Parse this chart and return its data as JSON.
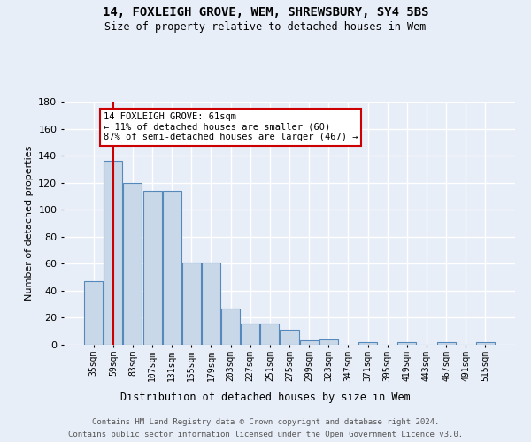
{
  "title1": "14, FOXLEIGH GROVE, WEM, SHREWSBURY, SY4 5BS",
  "title2": "Size of property relative to detached houses in Wem",
  "xlabel": "Distribution of detached houses by size in Wem",
  "ylabel": "Number of detached properties",
  "categories": [
    "35sqm",
    "59sqm",
    "83sqm",
    "107sqm",
    "131sqm",
    "155sqm",
    "179sqm",
    "203sqm",
    "227sqm",
    "251sqm",
    "275sqm",
    "299sqm",
    "323sqm",
    "347sqm",
    "371sqm",
    "395sqm",
    "419sqm",
    "443sqm",
    "467sqm",
    "491sqm",
    "515sqm"
  ],
  "values": [
    47,
    136,
    120,
    114,
    114,
    61,
    61,
    27,
    16,
    16,
    11,
    3,
    4,
    0,
    2,
    0,
    2,
    0,
    2,
    0,
    2
  ],
  "bar_color": "#c8d8e8",
  "bar_edge_color": "#5588bb",
  "vline_x": 1,
  "vline_color": "#cc0000",
  "ylim": [
    0,
    180
  ],
  "yticks": [
    0,
    20,
    40,
    60,
    80,
    100,
    120,
    140,
    160,
    180
  ],
  "annotation_text": "14 FOXLEIGH GROVE: 61sqm\n← 11% of detached houses are smaller (60)\n87% of semi-detached houses are larger (467) →",
  "annotation_box_color": "#ffffff",
  "annotation_border_color": "#cc0000",
  "footer1": "Contains HM Land Registry data © Crown copyright and database right 2024.",
  "footer2": "Contains public sector information licensed under the Open Government Licence v3.0.",
  "bg_color": "#e8eef8",
  "grid_color": "#ffffff"
}
